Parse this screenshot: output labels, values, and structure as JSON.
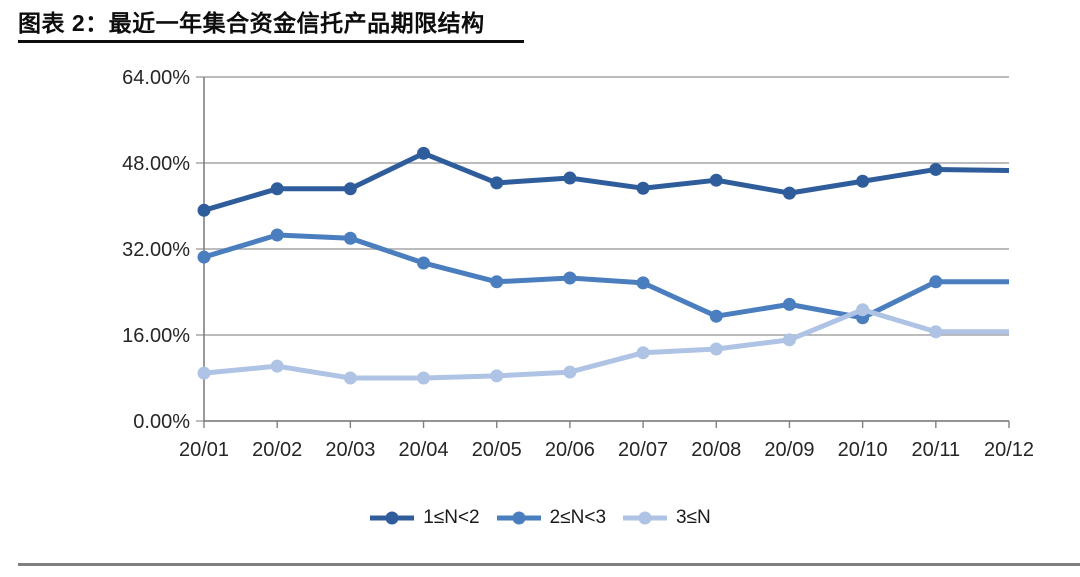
{
  "header": {
    "title": "图表 2：最近一年集合资金信托产品期限结构"
  },
  "chart_data": {
    "type": "line",
    "title": "最近一年集合资金信托产品期限结构",
    "categories": [
      "20/01",
      "20/02",
      "20/03",
      "20/04",
      "20/05",
      "20/06",
      "20/07",
      "20/08",
      "20/09",
      "20/10",
      "20/11",
      "20/12"
    ],
    "series": [
      {
        "name": "1≤N<2",
        "color": "#2F5D9C",
        "values": [
          39.2,
          43.2,
          43.2,
          49.8,
          44.3,
          45.2,
          43.3,
          44.8,
          42.4,
          44.6,
          46.8,
          46.6
        ]
      },
      {
        "name": "2≤N<3",
        "color": "#4A7EBF",
        "values": [
          30.5,
          34.6,
          34.0,
          29.4,
          25.9,
          26.6,
          25.7,
          19.5,
          21.7,
          19.2,
          25.9,
          25.9
        ]
      },
      {
        "name": "3≤N",
        "color": "#AFC3E5",
        "values": [
          8.9,
          10.2,
          8.0,
          8.0,
          8.4,
          9.1,
          12.7,
          13.4,
          15.1,
          20.7,
          16.6,
          16.6
        ]
      }
    ],
    "ylim": [
      0,
      64
    ],
    "y_ticks": [
      {
        "value": 0,
        "label": "0.00%"
      },
      {
        "value": 16,
        "label": "16.00%"
      },
      {
        "value": 32,
        "label": "32.00%"
      },
      {
        "value": 48,
        "label": "48.00%"
      },
      {
        "value": 64,
        "label": "64.00%"
      }
    ],
    "grid": "horizontal",
    "legend_position": "bottom"
  },
  "colors": {
    "grid": "#A6A6A6",
    "axis": "#808080",
    "tick_text": "#262626",
    "title_rule": "#0d0d0d",
    "bottom_rule": "#7f7f7f"
  }
}
